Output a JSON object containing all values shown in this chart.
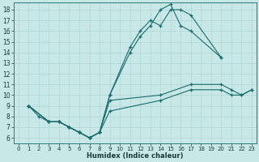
{
  "title": "",
  "xlabel": "Humidex (Indice chaleur)",
  "ylabel": "",
  "xlim": [
    -0.5,
    23.5
  ],
  "ylim": [
    5.5,
    18.7
  ],
  "xticks": [
    0,
    1,
    2,
    3,
    4,
    5,
    6,
    7,
    8,
    9,
    10,
    11,
    12,
    13,
    14,
    15,
    16,
    17,
    18,
    19,
    20,
    21,
    22,
    23
  ],
  "yticks": [
    6,
    7,
    8,
    9,
    10,
    11,
    12,
    13,
    14,
    15,
    16,
    17,
    18
  ],
  "bg_color": "#c8e8e8",
  "line_color": "#1a6b6b",
  "grid_color": "#b0d4d4",
  "line1_x": [
    1,
    2,
    3,
    4,
    5,
    6,
    7,
    8,
    9,
    11,
    12,
    13,
    14,
    15,
    16,
    17,
    20
  ],
  "line1_y": [
    9,
    8,
    7.5,
    7.5,
    7,
    6.5,
    6,
    6.5,
    10,
    14.5,
    16,
    17,
    16.5,
    18,
    18,
    17.5,
    13.5
  ],
  "line2_x": [
    1,
    3,
    4,
    5,
    6,
    7,
    8,
    9,
    11,
    12,
    13,
    14,
    15,
    16,
    17,
    20
  ],
  "line2_y": [
    9,
    7.5,
    7.5,
    7,
    6.5,
    6,
    6.5,
    10,
    14,
    15.5,
    16.5,
    18,
    18.5,
    16.5,
    16,
    13.5
  ],
  "line3_x": [
    1,
    3,
    4,
    5,
    6,
    7,
    8,
    9,
    14,
    17,
    20,
    21,
    22,
    23
  ],
  "line3_y": [
    9,
    7.5,
    7.5,
    7,
    6.5,
    6,
    6.5,
    9.5,
    10,
    11,
    11,
    10.5,
    10,
    10.5
  ],
  "line4_x": [
    1,
    3,
    4,
    5,
    6,
    7,
    8,
    9,
    14,
    17,
    20,
    21,
    22,
    23
  ],
  "line4_y": [
    9,
    7.5,
    7.5,
    7,
    6.5,
    6,
    6.5,
    8.5,
    9.5,
    10.5,
    10.5,
    10,
    10,
    10.5
  ]
}
